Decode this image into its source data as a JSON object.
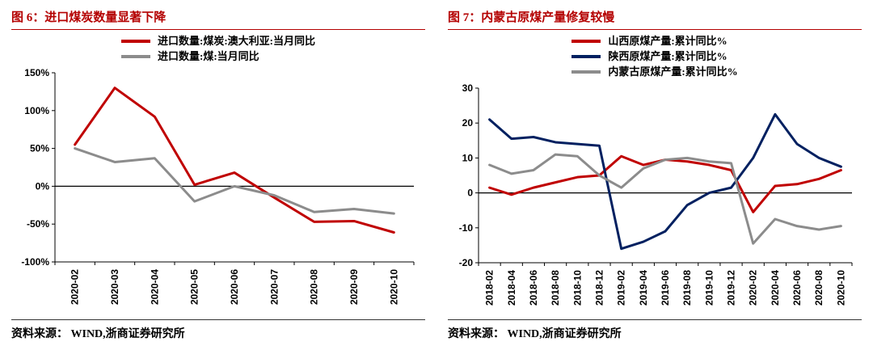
{
  "page": {
    "panels": [
      {
        "title": "图 6：进口煤炭数量显著下降",
        "source": "资料来源： WIND,浙商证券研究所"
      },
      {
        "title": "图 7：内蒙古原煤产量修复较慢",
        "source": "资料来源： WIND,浙商证券研究所"
      }
    ]
  },
  "chart_data": [
    {
      "type": "line",
      "title": "图 6：进口煤炭数量显著下降",
      "xlabel": "",
      "ylabel": "",
      "categories": [
        "2020-02",
        "2020-03",
        "2020-04",
        "2020-05",
        "2020-06",
        "2020-07",
        "2020-08",
        "2020-09",
        "2020-10"
      ],
      "series": [
        {
          "name": "进口数量:煤炭:澳大利亚:当月同比",
          "color": "#c00000",
          "values": [
            55,
            130,
            92,
            2,
            18,
            -15,
            -47,
            -46,
            -61
          ]
        },
        {
          "name": "进口数量:煤:当月同比",
          "color": "#8c8c8c",
          "values": [
            50,
            32,
            37,
            -20,
            0,
            -12,
            -34,
            -30,
            -36
          ]
        }
      ],
      "ylim": [
        -100,
        150
      ],
      "ytick_step": 50,
      "ytick_suffix": "%",
      "legend_position": "top",
      "grid": false
    },
    {
      "type": "line",
      "title": "图 7：内蒙古原煤产量修复较慢",
      "xlabel": "",
      "ylabel": "",
      "categories": [
        "2018-02",
        "2018-04",
        "2018-06",
        "2018-08",
        "2018-10",
        "2018-12",
        "2019-02",
        "2019-04",
        "2019-06",
        "2019-08",
        "2019-10",
        "2019-12",
        "2020-02",
        "2020-04",
        "2020-06",
        "2020-08",
        "2020-10"
      ],
      "series": [
        {
          "name": "山西原煤产量:累计同比%",
          "color": "#c00000",
          "values": [
            1.5,
            -0.5,
            1.5,
            3,
            4.5,
            5,
            10.5,
            8,
            9.5,
            9,
            8,
            6.5,
            -5.5,
            2,
            2.5,
            4,
            6.5
          ]
        },
        {
          "name": "陕西原煤产量:累计同比%",
          "color": "#002060",
          "values": [
            21,
            15.5,
            16,
            14.5,
            14,
            13.5,
            -16,
            -14,
            -11,
            -3.5,
            0,
            1.5,
            10,
            22.5,
            14,
            10,
            7.5
          ]
        },
        {
          "name": "内蒙古原煤产量:累计同比%",
          "color": "#8c8c8c",
          "values": [
            8,
            5.5,
            6.5,
            11,
            10.5,
            5,
            1.5,
            7,
            9.5,
            10,
            9,
            8.5,
            -14.5,
            -7.5,
            -9.5,
            -10.5,
            -9.5
          ]
        }
      ],
      "ylim": [
        -20,
        30
      ],
      "ytick_step": 10,
      "ytick_suffix": "",
      "legend_position": "top",
      "grid": false
    }
  ]
}
